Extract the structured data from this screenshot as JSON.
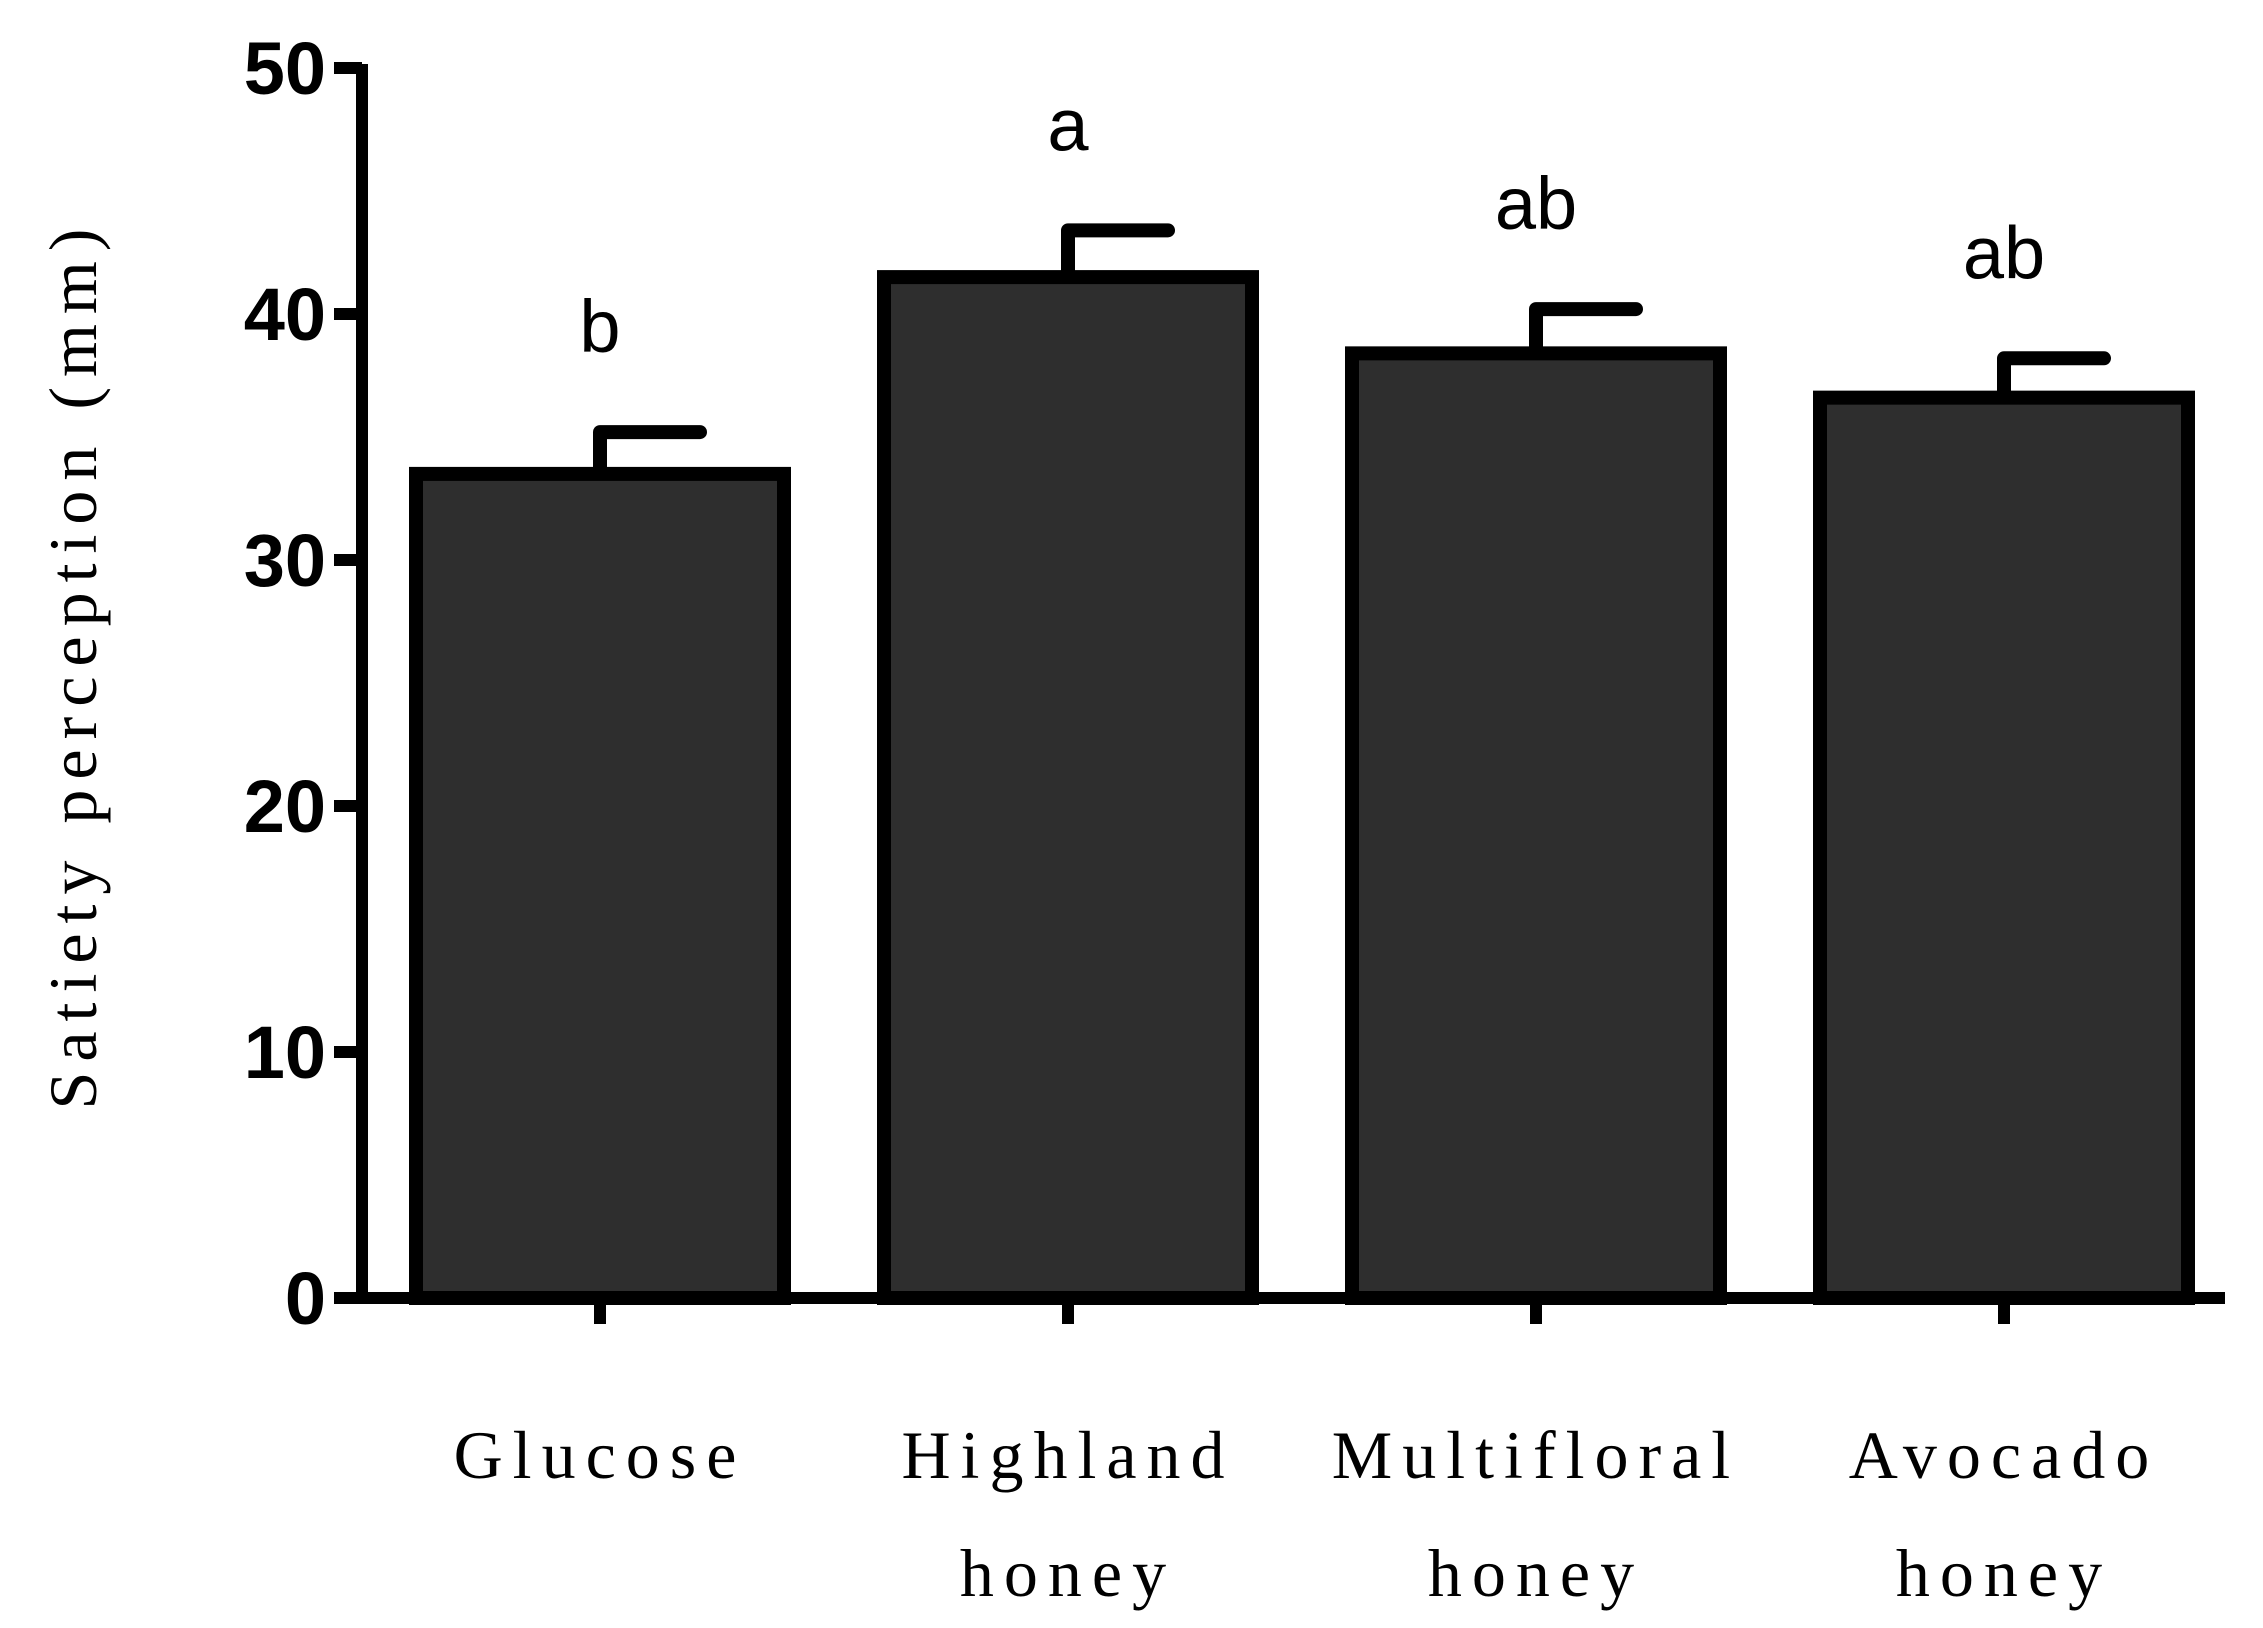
{
  "chart_data": {
    "type": "bar",
    "categories": [
      [
        "Glucose"
      ],
      [
        "Highland",
        "honey"
      ],
      [
        "Multifloral",
        "honey"
      ],
      [
        "Avocado",
        "honey"
      ]
    ],
    "values": [
      33.5,
      41.5,
      38.4,
      36.6
    ],
    "errors": [
      1.7,
      1.9,
      1.8,
      1.6
    ],
    "significance": [
      "b",
      "a",
      "ab",
      "ab"
    ],
    "xlabel": "",
    "ylabel": "Satiety perception (mm)",
    "ylim": [
      0,
      50
    ],
    "yticks": [
      0,
      10,
      20,
      30,
      40,
      50
    ],
    "grid": false,
    "colors": {
      "bar_fill": "#2e2e2e",
      "bar_stroke": "#000000",
      "axis": "#000000"
    }
  }
}
